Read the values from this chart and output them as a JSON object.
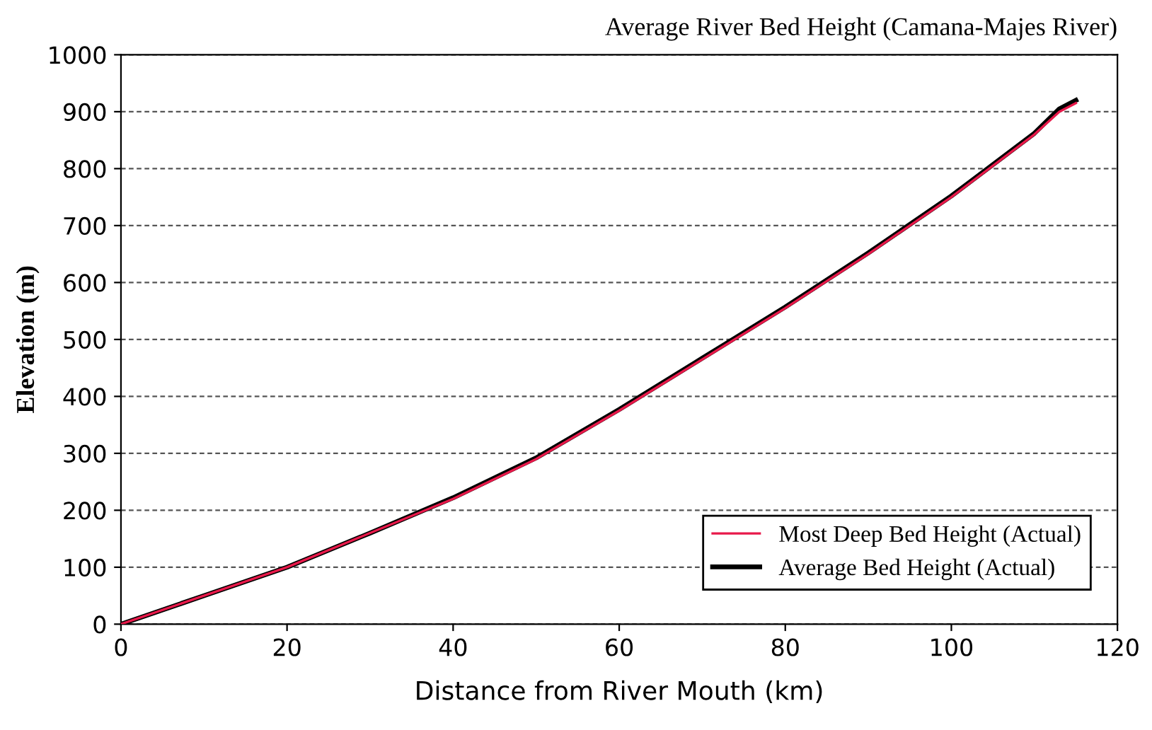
{
  "chart_data": {
    "type": "line",
    "title": "Average River Bed Height (Camana-Majes River)",
    "xlabel": "Distance from River Mouth (km)",
    "ylabel": "Elevation (m)",
    "xlim": [
      0,
      120
    ],
    "xticks": [
      0,
      20,
      40,
      60,
      80,
      100,
      120
    ],
    "ylim": [
      0,
      1000
    ],
    "yticks": [
      0,
      100,
      200,
      300,
      400,
      500,
      600,
      700,
      800,
      900,
      1000
    ],
    "grid": "y",
    "legend": "bottom right",
    "line_style": "solid",
    "marker": "none",
    "x": [
      0,
      10,
      20,
      30,
      40,
      50,
      60,
      70,
      80,
      90,
      100,
      110,
      113,
      115
    ],
    "series": [
      {
        "name": "Most Deep Bed Height (Actual)",
        "color": "#e8194a",
        "values": [
          0,
          50,
          100,
          160,
          220,
          290,
          375,
          465,
          555,
          650,
          750,
          860,
          900,
          915
        ]
      },
      {
        "name": "Average Bed Height (Actual)",
        "color": "#000000",
        "values": [
          0,
          50,
          100,
          160,
          222,
          292,
          377,
          467,
          557,
          652,
          752,
          862,
          905,
          920
        ]
      }
    ]
  }
}
